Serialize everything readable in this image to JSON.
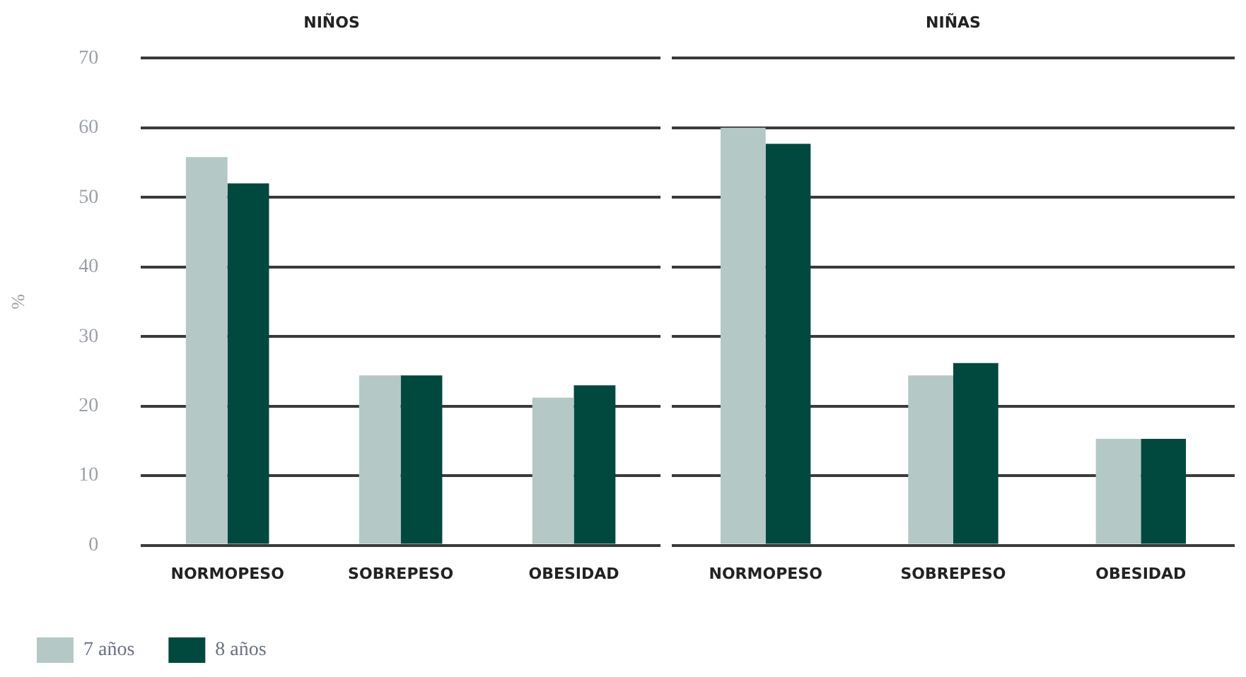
{
  "chart_data": [
    {
      "type": "bar",
      "title": "NIÑOS",
      "ylabel": "%",
      "categories": [
        "NORMOPESO",
        "SOBREPESO",
        "OBESIDAD"
      ],
      "ylim": [
        0,
        70
      ],
      "yticks": [
        0,
        10,
        20,
        30,
        40,
        50,
        60,
        70
      ],
      "grid": "y",
      "legend": "bottom",
      "series": [
        {
          "name": "7 años",
          "color": "#b4c8c5",
          "values": [
            55.8,
            24.4,
            21.2
          ]
        },
        {
          "name": "8 años",
          "color": "#01483f",
          "values": [
            52.0,
            24.4,
            23.0
          ]
        }
      ]
    },
    {
      "type": "bar",
      "title": "NIÑAS",
      "categories": [
        "NORMOPESO",
        "SOBREPESO",
        "OBESIDAD"
      ],
      "ylim": [
        0,
        70
      ],
      "yticks": [
        0,
        10,
        20,
        30,
        40,
        50,
        60,
        70
      ],
      "grid": "y",
      "legend": false,
      "tick_labels": "x",
      "series": [
        {
          "color": "#b4c8c5",
          "values": [
            60.0,
            24.4,
            15.3
          ]
        },
        {
          "color": "#01483f",
          "values": [
            57.7,
            26.2,
            15.3
          ]
        }
      ]
    }
  ]
}
